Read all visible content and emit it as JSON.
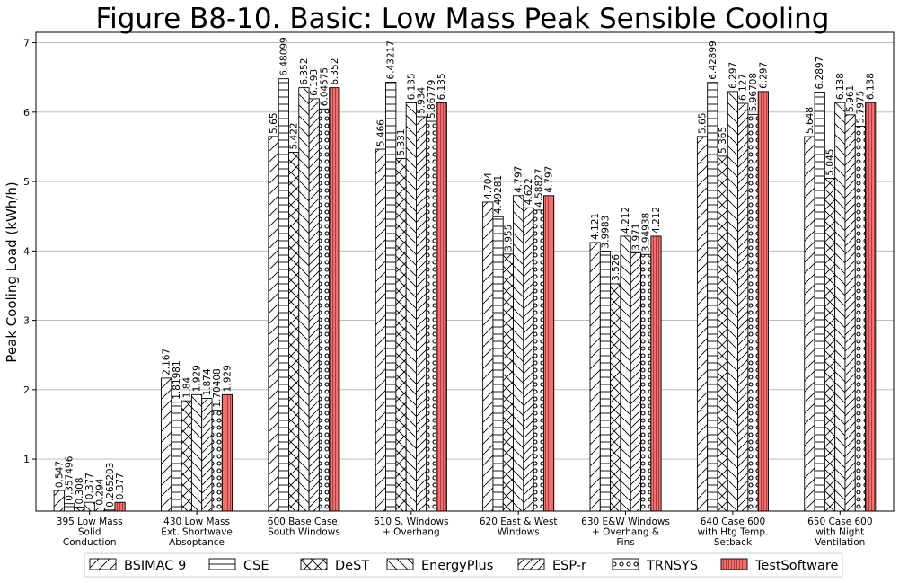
{
  "chart_data": {
    "type": "bar",
    "title": "Figure B8-10.  Basic: Low Mass Peak Sensible Cooling",
    "xlabel": "",
    "ylabel": "Peak Cooling Load (kWh/h)",
    "ylim": [
      0.25,
      7.15
    ],
    "yticks": [
      1,
      2,
      3,
      4,
      5,
      6,
      7
    ],
    "grid": "y",
    "legend_position": "bottom",
    "categories": [
      [
        "395 Low Mass",
        "Solid",
        "Conduction"
      ],
      [
        "430 Low Mass",
        "Ext. Shortwave",
        "Absoptance"
      ],
      [
        "600 Base Case,",
        "South Windows"
      ],
      [
        "610 S. Windows",
        "+ Overhang"
      ],
      [
        "620 East & West",
        "Windows"
      ],
      [
        "630 E&W Windows",
        "+ Overhang &",
        "Fins"
      ],
      [
        "640 Case 600",
        "with Htg Temp.",
        "Setback"
      ],
      [
        "650 Case 600",
        "with Night",
        "Ventilation"
      ]
    ],
    "series": [
      {
        "name": "BSIMAC 9",
        "pattern": "fdiag",
        "color": "#ffffff",
        "values": [
          0.547,
          2.167,
          5.65,
          5.466,
          4.704,
          4.121,
          5.65,
          5.648
        ],
        "labels": [
          "0.547",
          "2.167",
          "5.65",
          "5.466",
          "4.704",
          "4.121",
          "5.65",
          "5.648"
        ]
      },
      {
        "name": "CSE",
        "pattern": "hlines",
        "color": "#ffffff",
        "values": [
          0.357496,
          1.81981,
          6.48099,
          6.43217,
          4.49281,
          3.9983,
          6.42899,
          6.2897
        ],
        "labels": [
          "0.357496",
          "1.81981",
          "6.48099",
          "6.43217",
          "4.49281",
          "3.9983",
          "6.42899",
          "6.2897"
        ]
      },
      {
        "name": "DeST",
        "pattern": "xcross",
        "color": "#ffffff",
        "values": [
          0.308,
          1.84,
          5.422,
          5.331,
          3.955,
          3.526,
          5.365,
          5.045
        ],
        "labels": [
          "0.308",
          "1.84",
          "5.422",
          "5.331",
          "3.955",
          "3.526",
          "5.365",
          "5.045"
        ]
      },
      {
        "name": "EnergyPlus",
        "pattern": "bdiag",
        "color": "#ffffff",
        "values": [
          0.377,
          1.929,
          6.352,
          6.135,
          4.797,
          4.212,
          6.297,
          6.138
        ],
        "labels": [
          "0.377",
          "1.929",
          "6.352",
          "6.135",
          "4.797",
          "4.212",
          "6.297",
          "6.138"
        ]
      },
      {
        "name": "ESP-r",
        "pattern": "fdiag2",
        "color": "#ffffff",
        "values": [
          0.294,
          1.874,
          6.193,
          5.934,
          4.622,
          3.971,
          6.127,
          5.961
        ],
        "labels": [
          "0.294",
          "1.874",
          "6.193",
          "5.934",
          "4.622",
          "3.971",
          "6.127",
          "5.961"
        ]
      },
      {
        "name": "TRNSYS",
        "pattern": "circles",
        "color": "#ffffff",
        "values": [
          0.265203,
          1.70408,
          6.04575,
          5.86779,
          4.58827,
          3.94938,
          5.96708,
          5.7975
        ],
        "labels": [
          "0.265203",
          "1.70408",
          "6.04575",
          "5.86779",
          "4.58827",
          "3.94938",
          "5.96708",
          "5.7975"
        ]
      },
      {
        "name": "TestSoftware",
        "pattern": "vlines",
        "color": "#f07070",
        "values": [
          0.377,
          1.929,
          6.352,
          6.135,
          4.797,
          4.212,
          6.297,
          6.138
        ],
        "labels": [
          "0.377",
          "1.929",
          "6.352",
          "6.135",
          "4.797",
          "4.212",
          "6.297",
          "6.138"
        ]
      }
    ]
  }
}
